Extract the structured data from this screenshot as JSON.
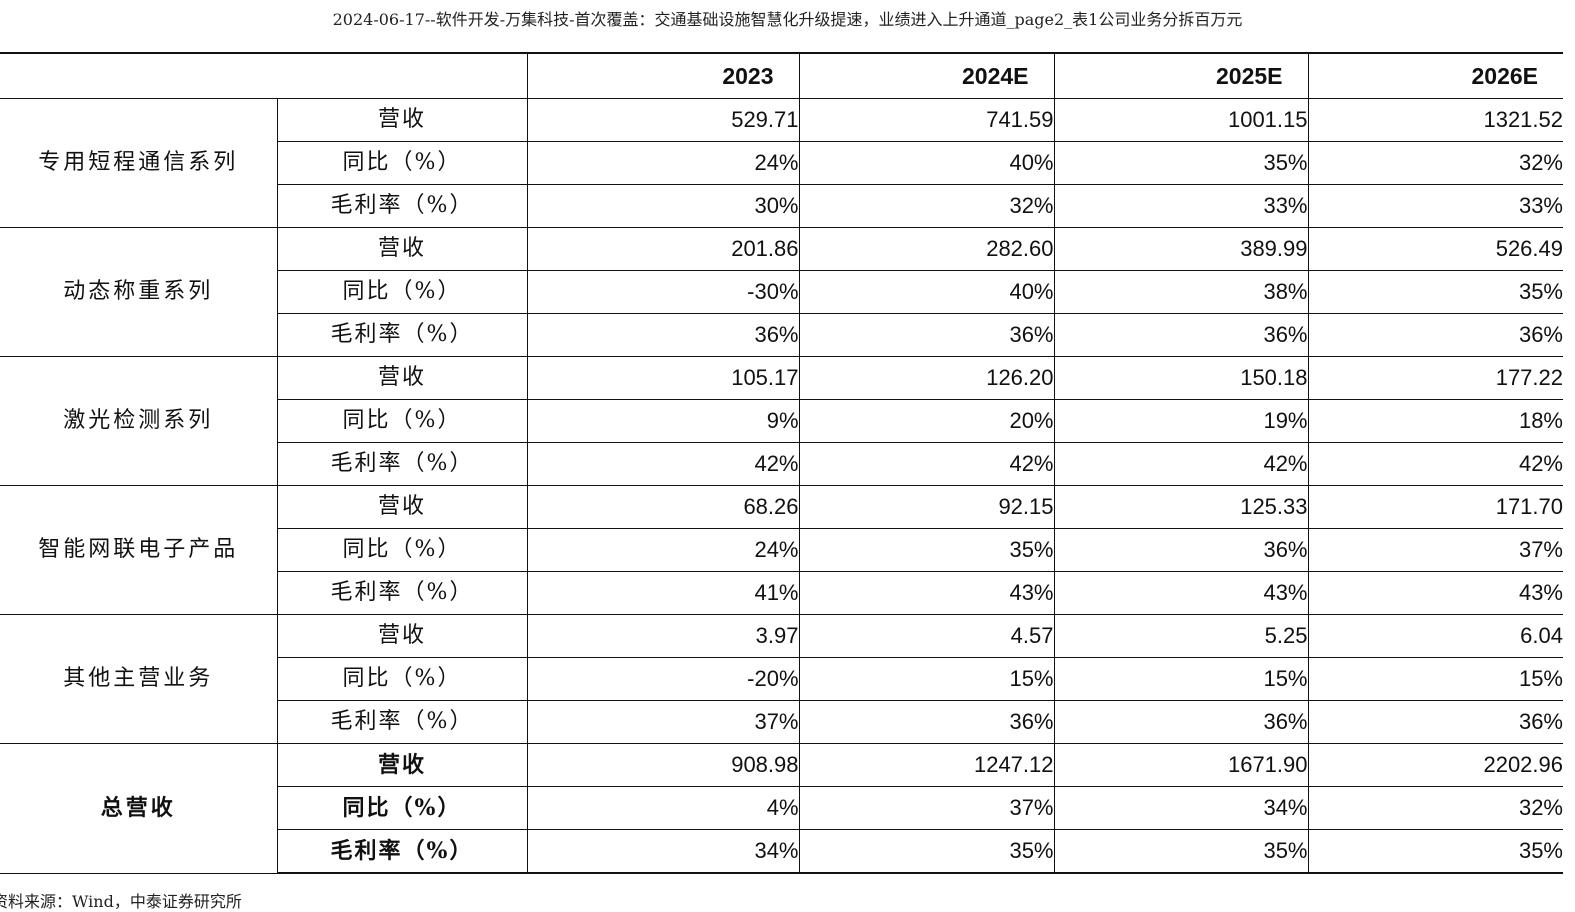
{
  "page_title": "2024-06-17--软件开发-万集科技-首次覆盖：交通基础设施智慧化升级提速，业绩进入上升通道_page2_表1公司业务分拆百万元",
  "table": {
    "corner": "",
    "years": [
      "2023",
      "2024E",
      "2025E",
      "2026E"
    ],
    "groups": [
      {
        "name": "专用短程通信系列",
        "bold": false,
        "rows": [
          {
            "label": "营收",
            "values": [
              "529.71",
              "741.59",
              "1001.15",
              "1321.52"
            ]
          },
          {
            "label": "同比（%）",
            "values": [
              "24%",
              "40%",
              "35%",
              "32%"
            ]
          },
          {
            "label": "毛利率（%）",
            "values": [
              "30%",
              "32%",
              "33%",
              "33%"
            ]
          }
        ]
      },
      {
        "name": "动态称重系列",
        "bold": false,
        "rows": [
          {
            "label": "营收",
            "values": [
              "201.86",
              "282.60",
              "389.99",
              "526.49"
            ]
          },
          {
            "label": "同比（%）",
            "values": [
              "-30%",
              "40%",
              "38%",
              "35%"
            ]
          },
          {
            "label": "毛利率（%）",
            "values": [
              "36%",
              "36%",
              "36%",
              "36%"
            ]
          }
        ]
      },
      {
        "name": "激光检测系列",
        "bold": false,
        "rows": [
          {
            "label": "营收",
            "values": [
              "105.17",
              "126.20",
              "150.18",
              "177.22"
            ]
          },
          {
            "label": "同比（%）",
            "values": [
              "9%",
              "20%",
              "19%",
              "18%"
            ]
          },
          {
            "label": "毛利率（%）",
            "values": [
              "42%",
              "42%",
              "42%",
              "42%"
            ]
          }
        ]
      },
      {
        "name": "智能网联电子产品",
        "bold": false,
        "rows": [
          {
            "label": "营收",
            "values": [
              "68.26",
              "92.15",
              "125.33",
              "171.70"
            ]
          },
          {
            "label": "同比（%）",
            "values": [
              "24%",
              "35%",
              "36%",
              "37%"
            ]
          },
          {
            "label": "毛利率（%）",
            "values": [
              "41%",
              "43%",
              "43%",
              "43%"
            ]
          }
        ]
      },
      {
        "name": "其他主营业务",
        "bold": false,
        "rows": [
          {
            "label": "营收",
            "values": [
              "3.97",
              "4.57",
              "5.25",
              "6.04"
            ]
          },
          {
            "label": "同比（%）",
            "values": [
              "-20%",
              "15%",
              "15%",
              "15%"
            ]
          },
          {
            "label": "毛利率（%）",
            "values": [
              "37%",
              "36%",
              "36%",
              "36%"
            ]
          }
        ]
      },
      {
        "name": "总营收",
        "bold": true,
        "rows": [
          {
            "label": "营收",
            "values": [
              "908.98",
              "1247.12",
              "1671.90",
              "2202.96"
            ]
          },
          {
            "label": "同比（%）",
            "values": [
              "4%",
              "37%",
              "34%",
              "32%"
            ]
          },
          {
            "label": "毛利率（%）",
            "values": [
              "34%",
              "35%",
              "35%",
              "35%"
            ]
          }
        ]
      }
    ]
  },
  "footer_note": "资料来源：Wind，中泰证券研究所"
}
